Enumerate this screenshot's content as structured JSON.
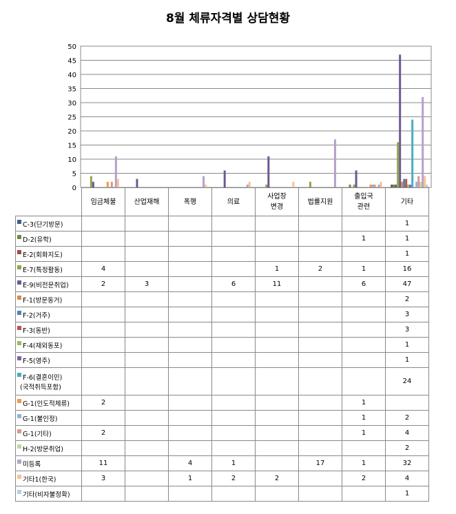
{
  "chart_data": {
    "type": "bar",
    "title": "8월 체류자격별 상담현황",
    "categories": [
      "임금체불",
      "산업재해",
      "폭행",
      "의료",
      "사업장\n변경",
      "법률지원",
      "출입국\n관련",
      "기타"
    ],
    "ylim": [
      0,
      50
    ],
    "yticks": [
      0,
      5,
      10,
      15,
      20,
      25,
      30,
      35,
      40,
      45,
      50
    ],
    "legend": "table-left",
    "series": [
      {
        "name": "C-3(단기방문)",
        "color": "#3F5F8A",
        "values": [
          null,
          null,
          null,
          null,
          null,
          null,
          null,
          1
        ]
      },
      {
        "name": "D-2(유학)",
        "color": "#6E8A3C",
        "values": [
          null,
          null,
          null,
          null,
          null,
          null,
          1,
          1
        ]
      },
      {
        "name": "E-2(회화지도)",
        "color": "#A04A48",
        "values": [
          null,
          null,
          null,
          null,
          null,
          null,
          null,
          1
        ]
      },
      {
        "name": "E-7(특정활동)",
        "color": "#8AA84A",
        "values": [
          4,
          null,
          null,
          null,
          1,
          2,
          1,
          16
        ]
      },
      {
        "name": "E-9(비전문취업)",
        "color": "#6F5793",
        "values": [
          2,
          3,
          null,
          6,
          11,
          null,
          6,
          47
        ]
      },
      {
        "name": "F-1(방문동거)",
        "color": "#D98A46",
        "values": [
          null,
          null,
          null,
          null,
          null,
          null,
          null,
          2
        ]
      },
      {
        "name": "F-2(거주)",
        "color": "#4F81BD",
        "values": [
          null,
          null,
          null,
          null,
          null,
          null,
          null,
          3
        ]
      },
      {
        "name": "F-3(동반)",
        "color": "#C0504D",
        "values": [
          null,
          null,
          null,
          null,
          null,
          null,
          null,
          3
        ]
      },
      {
        "name": "F-4(재외동포)",
        "color": "#9BBB59",
        "values": [
          null,
          null,
          null,
          null,
          null,
          null,
          null,
          1
        ]
      },
      {
        "name": "F-5(영주)",
        "color": "#8064A2",
        "values": [
          null,
          null,
          null,
          null,
          null,
          null,
          null,
          1
        ]
      },
      {
        "name": "F-6(결혼이민)",
        "name2": "(국적취득포함)",
        "color": "#4BACC6",
        "values": [
          null,
          null,
          null,
          null,
          null,
          null,
          null,
          24
        ]
      },
      {
        "name": "G-1(인도적체류)",
        "color": "#F79646",
        "values": [
          2,
          null,
          null,
          null,
          null,
          null,
          1,
          null
        ]
      },
      {
        "name": "G-1(불인정)",
        "color": "#95B3D7",
        "values": [
          null,
          null,
          null,
          null,
          null,
          null,
          1,
          2
        ]
      },
      {
        "name": "G-1(기타)",
        "color": "#D99694",
        "values": [
          2,
          null,
          null,
          null,
          null,
          null,
          1,
          4
        ]
      },
      {
        "name": "H-2(방문취업)",
        "color": "#C3D69B",
        "values": [
          null,
          null,
          null,
          null,
          null,
          null,
          null,
          2
        ]
      },
      {
        "name": "미등록",
        "color": "#B3A2C7",
        "values": [
          11,
          null,
          4,
          1,
          null,
          17,
          1,
          32
        ]
      },
      {
        "name": "기타1(한국)",
        "color": "#FAC090",
        "values": [
          3,
          null,
          1,
          2,
          2,
          null,
          2,
          4
        ]
      },
      {
        "name": "기타(비자불정확)",
        "color": "#B9CDE5",
        "values": [
          null,
          null,
          null,
          null,
          null,
          null,
          null,
          1
        ]
      }
    ]
  }
}
